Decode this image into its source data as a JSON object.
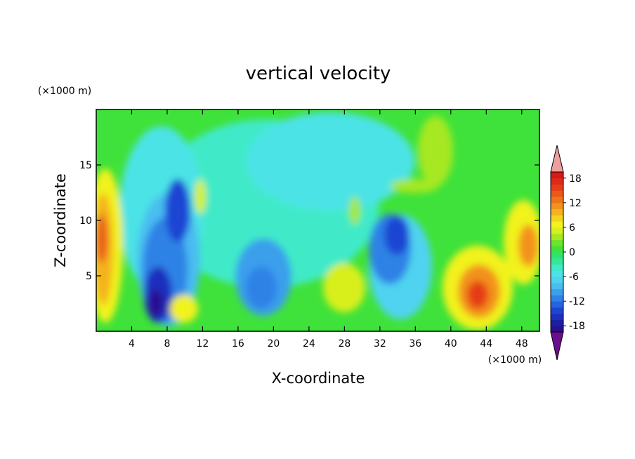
{
  "chart_data": {
    "type": "heatmap",
    "title": "vertical velocity",
    "xlabel": "X-coordinate",
    "ylabel": "Z-coordinate",
    "x_unit": "(×1000 m)",
    "y_unit": "(×1000 m)",
    "xlim": [
      0,
      50
    ],
    "ylim": [
      0,
      20
    ],
    "x_ticks": [
      4,
      8,
      12,
      16,
      20,
      24,
      28,
      32,
      36,
      40,
      44,
      48
    ],
    "y_ticks": [
      5,
      10,
      15
    ],
    "colorbar": {
      "levels": [
        -21,
        -19.5,
        -18,
        -16.5,
        -15,
        -13.5,
        -12,
        -10.5,
        -9,
        -7.5,
        -6,
        -4.5,
        -3,
        -1.5,
        0,
        1.5,
        3,
        4.5,
        6,
        7.5,
        9,
        10.5,
        12,
        13.5,
        15,
        16.5,
        18,
        19.5,
        21
      ],
      "colors": [
        "#6a0d8f",
        "#2a1090",
        "#1a1fa5",
        "#1c2fbf",
        "#1f44d4",
        "#2563e0",
        "#2f82e6",
        "#3b9fec",
        "#49bdf0",
        "#4fd3f0",
        "#4be3e6",
        "#40eac8",
        "#33e89a",
        "#2fe46a",
        "#3fe23a",
        "#6fe22a",
        "#a6e821",
        "#d8ef1e",
        "#f2f21f",
        "#f5d31e",
        "#f4b21d",
        "#f2921c",
        "#ee741b",
        "#ea581a",
        "#e53e19",
        "#df2a18",
        "#d81a17",
        "#ef9ea0"
      ],
      "tick_labels": [
        "18",
        "12",
        "6",
        "0",
        "-6",
        "-12",
        "-18"
      ],
      "tick_values": [
        18,
        12,
        6,
        0,
        -6,
        -12,
        -18
      ],
      "extend": "both"
    },
    "features": [
      {
        "x": 7,
        "z": 3,
        "value": -20,
        "description": "strongest downdraft core"
      },
      {
        "x": 7.5,
        "z": 8,
        "value": -12
      },
      {
        "x": 18.5,
        "z": 4.5,
        "value": -9
      },
      {
        "x": 34,
        "z": 8,
        "value": -11
      },
      {
        "x": 1,
        "z": 7,
        "value": 11
      },
      {
        "x": 43,
        "z": 4,
        "value": 12
      },
      {
        "x": 49,
        "z": 8,
        "value": 10
      },
      {
        "x": 10,
        "z": 2,
        "value": 6
      },
      {
        "x": 28.5,
        "z": 3.5,
        "value": 5
      }
    ]
  }
}
